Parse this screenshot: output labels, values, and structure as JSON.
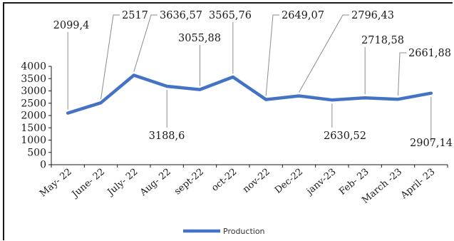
{
  "chart_data": {
    "type": "line",
    "categories": [
      "May- 22",
      "June- 22",
      "July- 22",
      "Aug- 22",
      "sept-22",
      "oct-22",
      "nov-22",
      "Dec-22",
      "janv-23",
      "Feb- 23",
      "March -23",
      "April- 23"
    ],
    "series": [
      {
        "name": "Production",
        "values": [
          2099.4,
          2517,
          3636.57,
          3188.6,
          3055.88,
          3565.76,
          2649.07,
          2796.43,
          2630.52,
          2718.58,
          2661.88,
          2907.14
        ],
        "labels": [
          "2099,4",
          "2517",
          "3636,57",
          "3188,6",
          "3055,88",
          "3565,76",
          "2649,07",
          "2796,43",
          "2630,52",
          "2718,58",
          "2661,88",
          "2907,14"
        ]
      }
    ],
    "yticks": [
      "0",
      "500",
      "1000",
      "1500",
      "2000",
      "2500",
      "3000",
      "3500",
      "4000"
    ],
    "ylim": [
      0,
      4000
    ],
    "title": "",
    "xlabel": "",
    "ylabel": "",
    "legend": "bottom",
    "grid": false,
    "line_color": "#4472c4"
  }
}
